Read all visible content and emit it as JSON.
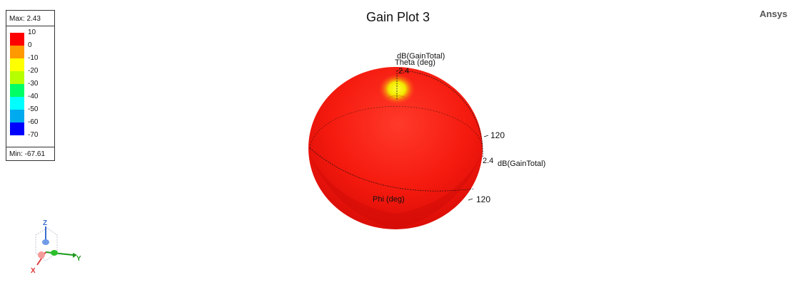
{
  "chart_data": {
    "type": "3d-radiation-pattern",
    "title": "Gain Plot 3",
    "quantity": "dB(GainTotal)",
    "max_label": "Max: 2.43",
    "min_label": "Min: -67.61",
    "max": 2.43,
    "min": -67.61,
    "colorbar": {
      "ticks": [
        "10",
        "0",
        "-10",
        "-20",
        "-30",
        "-40",
        "-50",
        "-60",
        "-70"
      ],
      "colors": [
        "#ff0000",
        "#ff9900",
        "#ffff00",
        "#b6ff00",
        "#00ff66",
        "#00ffff",
        "#00aaee",
        "#0000ff"
      ]
    },
    "annotations": {
      "top_quantity": "dB(GainTotal)",
      "theta_label": "Theta (deg)",
      "top_value": "2.4",
      "right_value": "2.4",
      "right_quantity": "dB(GainTotal)",
      "theta_tick": "120",
      "phi_label": "Phi (deg)",
      "phi_tick": "120"
    }
  },
  "brand": "Ansys",
  "axes_triad": {
    "x": "X",
    "y": "Y",
    "z": "Z"
  }
}
